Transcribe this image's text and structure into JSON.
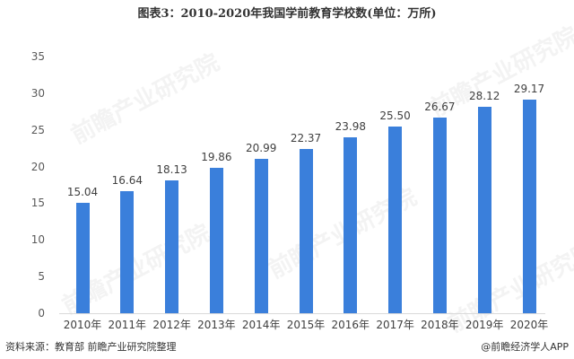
{
  "title": "图表3：2010-2020年我国学前教育学校数(单位：万所)",
  "footer": {
    "source": "资料来源：教育部 前瞻产业研究院整理",
    "credit": "@前瞻经济学人APP"
  },
  "watermark": "前瞻产业研究院",
  "colors": {
    "bar": "#3a7fdb",
    "axis": "#d9d9d9"
  },
  "chart_data": {
    "type": "bar",
    "title": "图表3：2010-2020年我国学前教育学校数(单位：万所)",
    "xlabel": "",
    "ylabel": "",
    "unit": "万所",
    "categories": [
      "2010年",
      "2011年",
      "2012年",
      "2013年",
      "2014年",
      "2015年",
      "2016年",
      "2017年",
      "2018年",
      "2019年",
      "2020年"
    ],
    "values": [
      15.04,
      16.64,
      18.13,
      19.86,
      20.99,
      22.37,
      23.98,
      25.5,
      26.67,
      28.12,
      29.17
    ],
    "value_labels": [
      "15.04",
      "16.64",
      "18.13",
      "19.86",
      "20.99",
      "22.37",
      "23.98",
      "25.50",
      "26.67",
      "28.12",
      "29.17"
    ],
    "ylim": [
      0,
      35
    ],
    "yticks": [
      "0",
      "5",
      "10",
      "15",
      "20",
      "25",
      "30",
      "35"
    ],
    "grid": false,
    "legend": null,
    "series_color": "#3a7fdb"
  }
}
